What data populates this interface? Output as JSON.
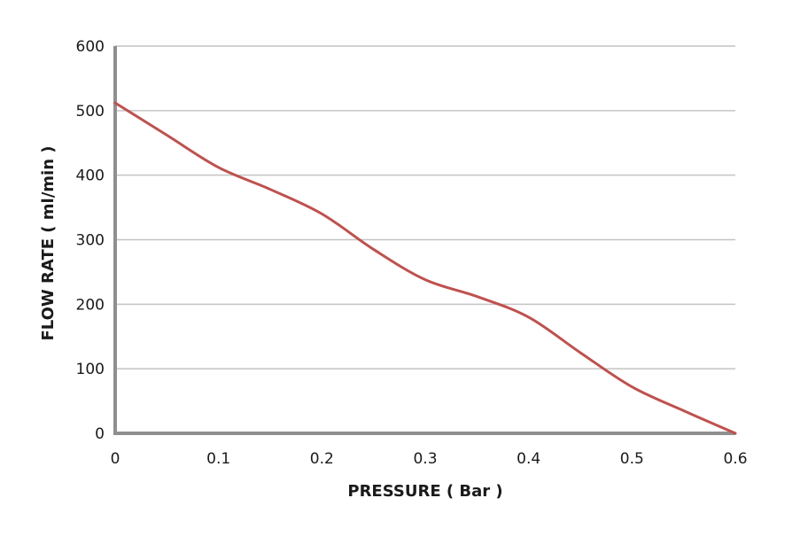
{
  "chart_data": {
    "type": "line",
    "title": "",
    "xlabel": "PRESSURE ( Bar )",
    "ylabel": "FLOW RATE ( ml/min )",
    "xlim": [
      0,
      0.6
    ],
    "ylim": [
      0,
      600
    ],
    "x_ticks": [
      "0",
      "0.1",
      "0.2",
      "0.3",
      "0.4",
      "0.5",
      "0.6"
    ],
    "y_ticks": [
      "0",
      "100",
      "200",
      "300",
      "400",
      "500",
      "600"
    ],
    "grid": true,
    "legend": "none",
    "series": [
      {
        "color": "#c0504d",
        "x": [
          0,
          0.05,
          0.1,
          0.15,
          0.2,
          0.25,
          0.3,
          0.35,
          0.4,
          0.45,
          0.5,
          0.55,
          0.6
        ],
        "y": [
          512,
          462,
          412,
          378,
          340,
          285,
          238,
          212,
          180,
          125,
          72,
          35,
          0
        ]
      }
    ]
  }
}
